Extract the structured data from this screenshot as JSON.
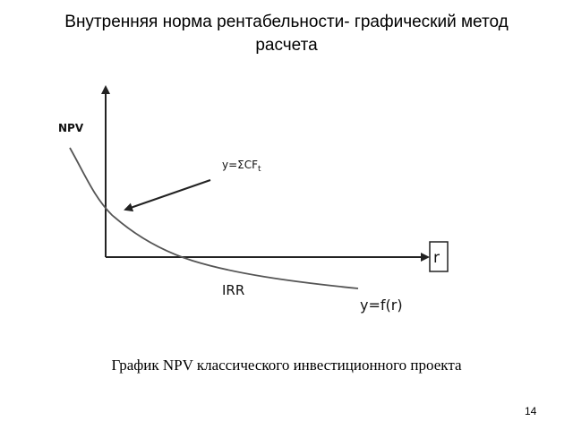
{
  "header": {
    "title": "Внутренняя норма рентабельности- графический метод расчета"
  },
  "diagram": {
    "y_axis_label": "NPV",
    "x_axis_label": "r",
    "formula_label": {
      "main": "y=ΣCF",
      "sub": "t"
    },
    "crossing_label": "IRR",
    "curve_label": "y=f(r)"
  },
  "caption": "График NPV классического инвестиционного проекта",
  "page_number": "14"
}
